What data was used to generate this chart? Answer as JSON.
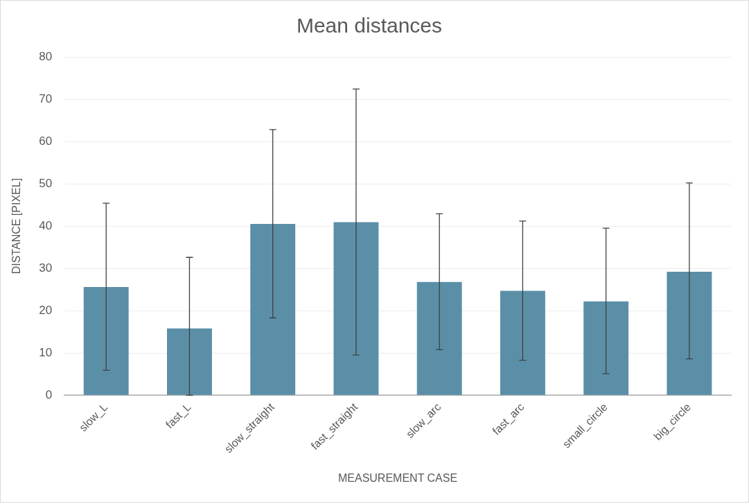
{
  "chart_data": {
    "type": "bar",
    "title": "Mean distances",
    "xlabel": "MEASUREMENT CASE",
    "ylabel": "DISTANCE [PIXEL]",
    "categories": [
      "slow_L",
      "fast_L",
      "slow_straight",
      "fast_straight",
      "slow_arc",
      "fast_arc",
      "small_circle",
      "big_circle"
    ],
    "values": [
      25.6,
      15.8,
      40.5,
      40.9,
      26.8,
      24.7,
      22.2,
      29.2
    ],
    "errors": [
      [
        5.9,
        45.4
      ],
      [
        0,
        32.6
      ],
      [
        18.3,
        62.8
      ],
      [
        9.5,
        72.4
      ],
      [
        10.8,
        42.9
      ],
      [
        8.3,
        41.2
      ],
      [
        5.1,
        39.5
      ],
      [
        8.6,
        50.2
      ]
    ],
    "color": "#5b8fa8",
    "ylim": [
      0,
      80
    ],
    "yticks": [
      0,
      10,
      20,
      30,
      40,
      50,
      60,
      70,
      80
    ],
    "grid": "y",
    "legend": false
  }
}
